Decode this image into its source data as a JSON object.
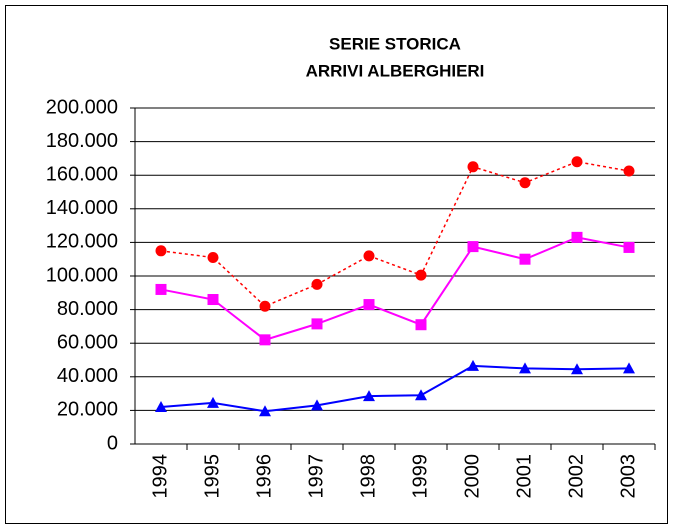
{
  "chart_data": {
    "type": "line",
    "title": "SERIE STORICA",
    "subtitle": "ARRIVI ALBERGHIERI",
    "categories": [
      "1994",
      "1995",
      "1996",
      "1997",
      "1998",
      "1999",
      "2000",
      "2001",
      "2002",
      "2003"
    ],
    "series": [
      {
        "color": "#ff0000",
        "marker": "circle",
        "dashed": true,
        "values": [
          115000,
          111000,
          82000,
          95000,
          112000,
          100500,
          165000,
          155500,
          168000,
          162500
        ]
      },
      {
        "color": "#ff00ff",
        "marker": "square",
        "dashed": false,
        "values": [
          92000,
          86000,
          62000,
          71500,
          83000,
          71000,
          117500,
          110000,
          123000,
          117000
        ]
      },
      {
        "color": "#0000ff",
        "marker": "triangle",
        "dashed": false,
        "values": [
          22000,
          24500,
          19500,
          23000,
          28500,
          29000,
          46500,
          45000,
          44500,
          45000
        ]
      }
    ],
    "ylim": [
      0,
      200000
    ],
    "yticks": [
      0,
      {
        "value": 20000,
        "label": "20.000"
      },
      {
        "value": 40000,
        "label": "40.000"
      },
      {
        "value": 60000,
        "label": "60.000"
      },
      {
        "value": 80000,
        "label": "80.000"
      },
      {
        "value": 100000,
        "label": "100.000"
      },
      {
        "value": 120000,
        "label": "120.000"
      },
      {
        "value": 140000,
        "label": "140.000"
      },
      {
        "value": 160000,
        "label": "160.000"
      },
      {
        "value": 180000,
        "label": "180.000"
      },
      {
        "value": 200000,
        "label": "200.000"
      }
    ],
    "grid": true
  }
}
